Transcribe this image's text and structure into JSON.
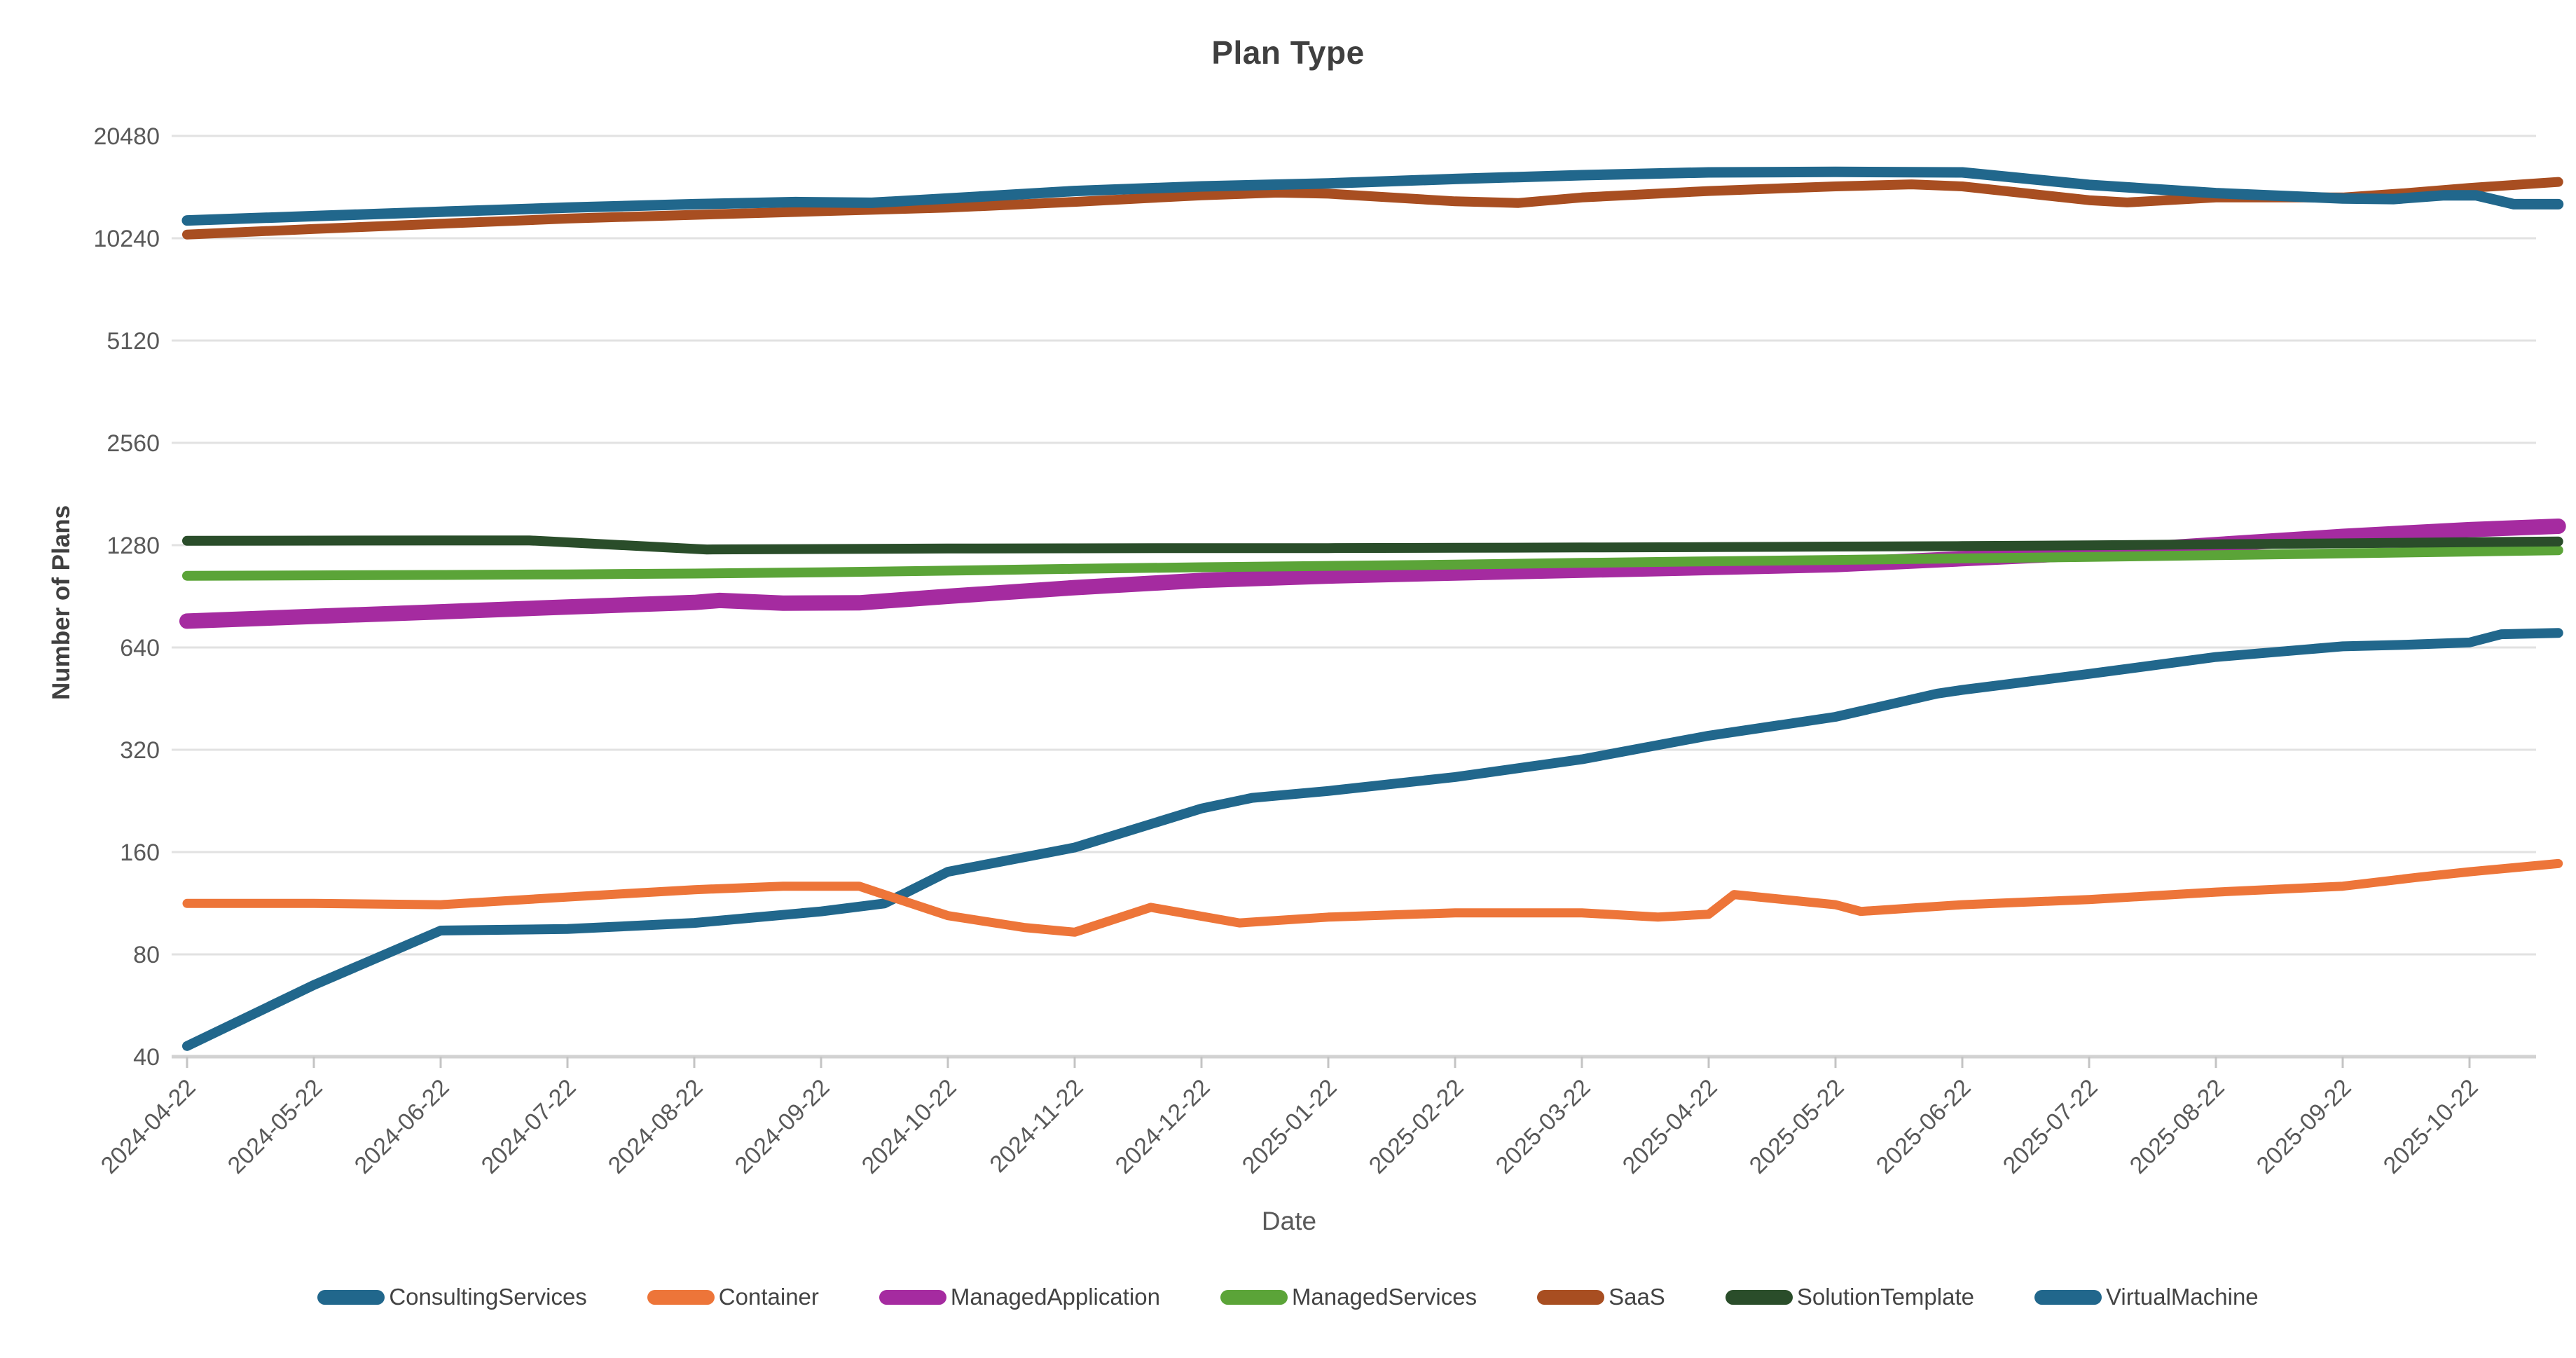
{
  "chart_data": {
    "type": "line",
    "title": "Plan Type",
    "xlabel": "Date",
    "ylabel": "Number of Plans",
    "y_scale": "log2",
    "grid": true,
    "legend_position": "bottom",
    "y_tick_values": [
      40,
      80,
      160,
      320,
      640,
      1280,
      2560,
      5120,
      10240,
      20480
    ],
    "x_tick_labels": [
      "2024-04-22",
      "2024-05-22",
      "2024-06-22",
      "2024-07-22",
      "2024-08-22",
      "2024-09-22",
      "2024-10-22",
      "2024-11-22",
      "2024-12-22",
      "2025-01-22",
      "2025-02-22",
      "2025-03-22",
      "2025-04-22",
      "2025-05-22",
      "2025-06-22",
      "2025-07-22",
      "2025-08-22",
      "2025-09-22",
      "2025-10-22"
    ],
    "x_axis_note": "x values below are month indices where 0 = 2024-04-22 and 18 = 2025-10-22",
    "series": [
      {
        "name": "ConsultingServices",
        "color": "#21678c",
        "stroke_width": 14,
        "points": [
          [
            0,
            43
          ],
          [
            1,
            65
          ],
          [
            2,
            94
          ],
          [
            3,
            95
          ],
          [
            4,
            99
          ],
          [
            5,
            107
          ],
          [
            5.5,
            113
          ],
          [
            6,
            140
          ],
          [
            7,
            165
          ],
          [
            8,
            215
          ],
          [
            8.4,
            231
          ],
          [
            9,
            242
          ],
          [
            10,
            266
          ],
          [
            11,
            300
          ],
          [
            12,
            352
          ],
          [
            13,
            400
          ],
          [
            13.8,
            468
          ],
          [
            14,
            480
          ],
          [
            15,
            535
          ],
          [
            16,
            600
          ],
          [
            17,
            645
          ],
          [
            17.5,
            652
          ],
          [
            18,
            662
          ],
          [
            18.25,
            700
          ],
          [
            18.7,
            706
          ]
        ]
      },
      {
        "name": "Container",
        "color": "#ed7539",
        "stroke_width": 13,
        "points": [
          [
            0,
            113
          ],
          [
            1,
            113
          ],
          [
            2,
            112
          ],
          [
            3,
            118
          ],
          [
            4,
            124
          ],
          [
            4.7,
            127
          ],
          [
            5.3,
            127
          ],
          [
            6,
            104
          ],
          [
            6.6,
            96
          ],
          [
            7,
            93
          ],
          [
            7.6,
            110
          ],
          [
            8.3,
            99
          ],
          [
            9,
            103
          ],
          [
            10,
            106
          ],
          [
            11,
            106
          ],
          [
            11.6,
            103
          ],
          [
            12,
            105
          ],
          [
            12.2,
            120
          ],
          [
            13,
            112
          ],
          [
            13.2,
            107
          ],
          [
            14,
            112
          ],
          [
            15,
            116
          ],
          [
            16,
            122
          ],
          [
            17,
            127
          ],
          [
            17.6,
            135
          ],
          [
            18,
            140
          ],
          [
            18.7,
            148
          ]
        ]
      },
      {
        "name": "ManagedApplication",
        "color": "#a52ba0",
        "stroke_width": 22,
        "points": [
          [
            0,
            765
          ],
          [
            1,
            790
          ],
          [
            2,
            815
          ],
          [
            3,
            842
          ],
          [
            4,
            868
          ],
          [
            4.2,
            880
          ],
          [
            4.7,
            864
          ],
          [
            5.3,
            866
          ],
          [
            6,
            905
          ],
          [
            7,
            960
          ],
          [
            8,
            1008
          ],
          [
            9,
            1038
          ],
          [
            10,
            1060
          ],
          [
            11,
            1080
          ],
          [
            12,
            1100
          ],
          [
            13,
            1122
          ],
          [
            14,
            1168
          ],
          [
            15,
            1215
          ],
          [
            16,
            1285
          ],
          [
            17,
            1358
          ],
          [
            18,
            1422
          ],
          [
            18.7,
            1455
          ]
        ]
      },
      {
        "name": "ManagedServices",
        "color": "#5ba438",
        "stroke_width": 14,
        "points": [
          [
            0,
            1040
          ],
          [
            1,
            1043
          ],
          [
            2,
            1046
          ],
          [
            3,
            1050
          ],
          [
            4,
            1056
          ],
          [
            5,
            1065
          ],
          [
            6,
            1077
          ],
          [
            7,
            1090
          ],
          [
            8,
            1102
          ],
          [
            9,
            1112
          ],
          [
            10,
            1122
          ],
          [
            11,
            1135
          ],
          [
            12,
            1147
          ],
          [
            13,
            1158
          ],
          [
            14,
            1170
          ],
          [
            15,
            1182
          ],
          [
            16,
            1196
          ],
          [
            17,
            1210
          ],
          [
            18,
            1226
          ],
          [
            18.7,
            1237
          ]
        ]
      },
      {
        "name": "SaaS",
        "color": "#a84e21",
        "stroke_width": 14,
        "points": [
          [
            0,
            10500
          ],
          [
            1,
            10900
          ],
          [
            2,
            11300
          ],
          [
            3,
            11700
          ],
          [
            4,
            12000
          ],
          [
            5,
            12300
          ],
          [
            6,
            12600
          ],
          [
            7,
            13100
          ],
          [
            8,
            13700
          ],
          [
            8.6,
            13950
          ],
          [
            9,
            13850
          ],
          [
            10,
            13150
          ],
          [
            10.5,
            13000
          ],
          [
            11,
            13500
          ],
          [
            12,
            14100
          ],
          [
            13,
            14550
          ],
          [
            13.6,
            14750
          ],
          [
            14,
            14550
          ],
          [
            15,
            13250
          ],
          [
            15.3,
            13050
          ],
          [
            16,
            13500
          ],
          [
            17,
            13500
          ],
          [
            17.5,
            13900
          ],
          [
            18,
            14400
          ],
          [
            18.7,
            15000
          ]
        ]
      },
      {
        "name": "SolutionTemplate",
        "color": "#2a4d2a",
        "stroke_width": 14,
        "points": [
          [
            0,
            1318
          ],
          [
            1,
            1320
          ],
          [
            2,
            1322
          ],
          [
            2.7,
            1322
          ],
          [
            4.1,
            1243
          ],
          [
            5,
            1247
          ],
          [
            6,
            1251
          ],
          [
            7,
            1253
          ],
          [
            8,
            1255
          ],
          [
            9,
            1255
          ],
          [
            10,
            1257
          ],
          [
            11,
            1260
          ],
          [
            12,
            1263
          ],
          [
            13,
            1268
          ],
          [
            14,
            1272
          ],
          [
            15,
            1278
          ],
          [
            16,
            1288
          ],
          [
            17,
            1296
          ],
          [
            18,
            1306
          ],
          [
            18.7,
            1312
          ]
        ]
      },
      {
        "name": "VirtualMachine",
        "color": "#21678c",
        "stroke_width": 15,
        "points": [
          [
            0,
            11550
          ],
          [
            1,
            11900
          ],
          [
            2,
            12250
          ],
          [
            3,
            12600
          ],
          [
            4,
            12900
          ],
          [
            4.8,
            13080
          ],
          [
            5.4,
            13020
          ],
          [
            6,
            13400
          ],
          [
            7,
            14100
          ],
          [
            8,
            14550
          ],
          [
            9,
            14850
          ],
          [
            10,
            15300
          ],
          [
            11,
            15700
          ],
          [
            12,
            16000
          ],
          [
            13,
            16050
          ],
          [
            14,
            16000
          ],
          [
            15,
            14700
          ],
          [
            16,
            13900
          ],
          [
            17,
            13400
          ],
          [
            17.4,
            13350
          ],
          [
            17.8,
            13700
          ],
          [
            18.05,
            13700
          ],
          [
            18.35,
            12900
          ],
          [
            18.7,
            12900
          ]
        ]
      }
    ],
    "colors": {
      "grid": "#e2e2e2",
      "axis_line": "#d2d2d2",
      "tick_mark": "#c4c4c4",
      "tick_label": "#595959",
      "title": "#3f3f3f",
      "background": "#ffffff"
    }
  }
}
